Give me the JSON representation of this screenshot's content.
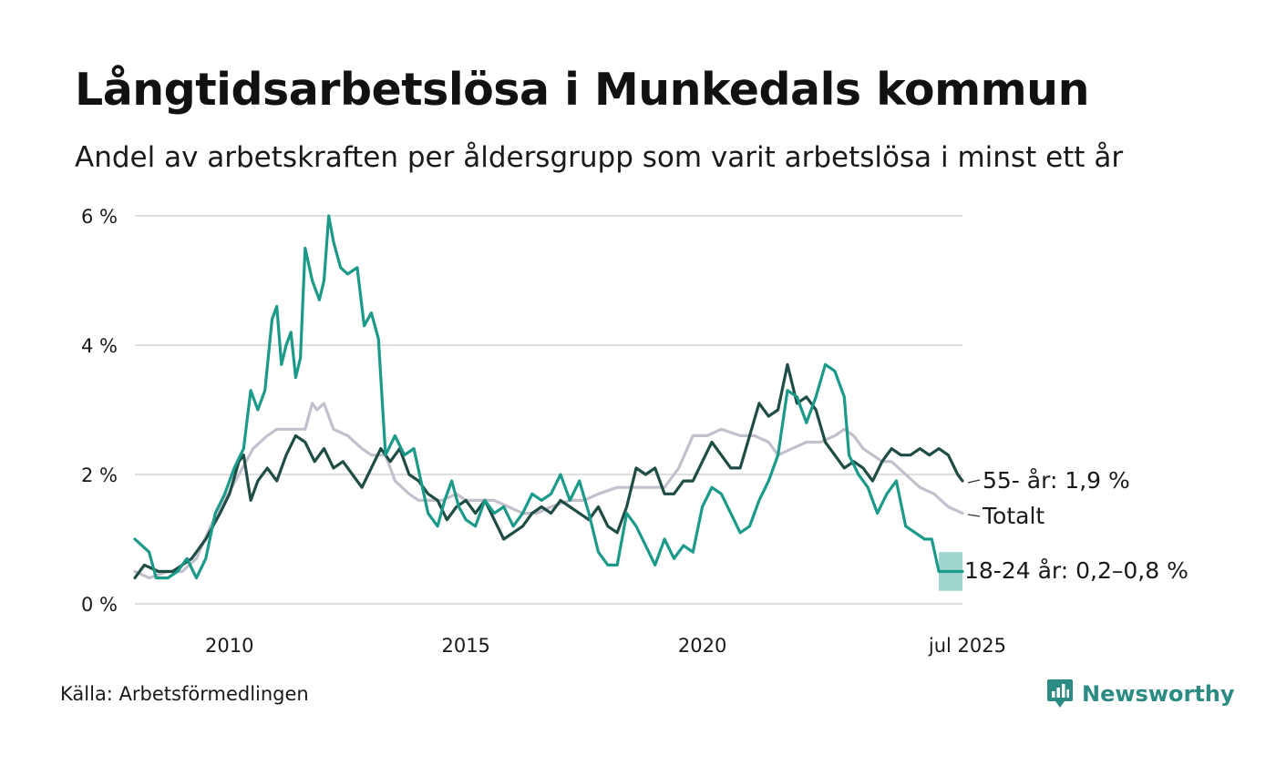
{
  "header": {
    "title": "Långtidsarbetslösa i Munkedals kommun",
    "subtitle": "Andel av arbetskraften per åldersgrupp som varit arbetslösa i minst ett år"
  },
  "footer": {
    "source": "Källa: Arbetsförmedlingen",
    "brand_name": "Newsworthy",
    "brand_color": "#2c8c84"
  },
  "chart_data": {
    "type": "line",
    "title": "Långtidsarbetslösa i Munkedals kommun",
    "subtitle": "Andel av arbetskraften per åldersgrupp som varit arbetslösa i minst ett år",
    "xlabel": "",
    "ylabel": "",
    "xlim": [
      2008.0,
      2025.5
    ],
    "ylim": [
      0,
      6
    ],
    "grid": "horizontal",
    "legend": "inline-right",
    "y_ticks": [
      {
        "value": 0,
        "label": "0 %"
      },
      {
        "value": 2,
        "label": "2 %"
      },
      {
        "value": 4,
        "label": "4 %"
      },
      {
        "value": 6,
        "label": "6 %"
      }
    ],
    "x_ticks": [
      {
        "value": 2010,
        "label": "2010"
      },
      {
        "value": 2015,
        "label": "2015"
      },
      {
        "value": 2020,
        "label": "2020"
      },
      {
        "value": 2025.5,
        "label": "jul 2025"
      }
    ],
    "series": [
      {
        "key": "totalt",
        "name": "Totalt",
        "label": "Totalt",
        "color": "#c2c0cd",
        "points": [
          [
            2008.0,
            0.5
          ],
          [
            2008.3,
            0.4
          ],
          [
            2008.7,
            0.5
          ],
          [
            2009.0,
            0.5
          ],
          [
            2009.3,
            0.7
          ],
          [
            2009.6,
            1.2
          ],
          [
            2009.9,
            1.6
          ],
          [
            2010.2,
            2.0
          ],
          [
            2010.5,
            2.4
          ],
          [
            2010.8,
            2.6
          ],
          [
            2011.0,
            2.7
          ],
          [
            2011.3,
            2.7
          ],
          [
            2011.6,
            2.7
          ],
          [
            2011.75,
            3.1
          ],
          [
            2011.85,
            3.0
          ],
          [
            2012.0,
            3.1
          ],
          [
            2012.2,
            2.7
          ],
          [
            2012.5,
            2.6
          ],
          [
            2012.8,
            2.4
          ],
          [
            2013.0,
            2.3
          ],
          [
            2013.3,
            2.3
          ],
          [
            2013.5,
            1.9
          ],
          [
            2013.8,
            1.7
          ],
          [
            2014.0,
            1.6
          ],
          [
            2014.5,
            1.6
          ],
          [
            2014.8,
            1.7
          ],
          [
            2015.0,
            1.6
          ],
          [
            2015.3,
            1.6
          ],
          [
            2015.6,
            1.6
          ],
          [
            2015.9,
            1.5
          ],
          [
            2016.2,
            1.4
          ],
          [
            2016.5,
            1.4
          ],
          [
            2016.8,
            1.5
          ],
          [
            2017.2,
            1.6
          ],
          [
            2017.5,
            1.6
          ],
          [
            2017.8,
            1.7
          ],
          [
            2018.2,
            1.8
          ],
          [
            2018.5,
            1.8
          ],
          [
            2018.8,
            1.8
          ],
          [
            2019.2,
            1.8
          ],
          [
            2019.5,
            2.1
          ],
          [
            2019.8,
            2.6
          ],
          [
            2020.1,
            2.6
          ],
          [
            2020.4,
            2.7
          ],
          [
            2020.8,
            2.6
          ],
          [
            2021.1,
            2.6
          ],
          [
            2021.4,
            2.5
          ],
          [
            2021.6,
            2.3
          ],
          [
            2021.9,
            2.4
          ],
          [
            2022.2,
            2.5
          ],
          [
            2022.5,
            2.5
          ],
          [
            2022.8,
            2.6
          ],
          [
            2023.0,
            2.7
          ],
          [
            2023.2,
            2.6
          ],
          [
            2023.4,
            2.4
          ],
          [
            2023.6,
            2.3
          ],
          [
            2023.8,
            2.2
          ],
          [
            2024.0,
            2.2
          ],
          [
            2024.3,
            2.0
          ],
          [
            2024.6,
            1.8
          ],
          [
            2024.9,
            1.7
          ],
          [
            2025.2,
            1.5
          ],
          [
            2025.5,
            1.4
          ]
        ]
      },
      {
        "key": "age55",
        "name": "55- år",
        "label": "55- år: 1,9 %",
        "color": "#1f4d45",
        "points": [
          [
            2008.0,
            0.4
          ],
          [
            2008.2,
            0.6
          ],
          [
            2008.5,
            0.5
          ],
          [
            2008.8,
            0.5
          ],
          [
            2009.0,
            0.6
          ],
          [
            2009.2,
            0.7
          ],
          [
            2009.5,
            1.0
          ],
          [
            2009.8,
            1.4
          ],
          [
            2010.0,
            1.7
          ],
          [
            2010.2,
            2.2
          ],
          [
            2010.3,
            2.3
          ],
          [
            2010.45,
            1.6
          ],
          [
            2010.6,
            1.9
          ],
          [
            2010.8,
            2.1
          ],
          [
            2011.0,
            1.9
          ],
          [
            2011.2,
            2.3
          ],
          [
            2011.4,
            2.6
          ],
          [
            2011.6,
            2.5
          ],
          [
            2011.8,
            2.2
          ],
          [
            2012.0,
            2.4
          ],
          [
            2012.2,
            2.1
          ],
          [
            2012.4,
            2.2
          ],
          [
            2012.6,
            2.0
          ],
          [
            2012.8,
            1.8
          ],
          [
            2013.0,
            2.1
          ],
          [
            2013.2,
            2.4
          ],
          [
            2013.4,
            2.2
          ],
          [
            2013.6,
            2.4
          ],
          [
            2013.8,
            2.0
          ],
          [
            2014.0,
            1.9
          ],
          [
            2014.2,
            1.7
          ],
          [
            2014.4,
            1.6
          ],
          [
            2014.6,
            1.3
          ],
          [
            2014.8,
            1.5
          ],
          [
            2015.0,
            1.6
          ],
          [
            2015.2,
            1.4
          ],
          [
            2015.4,
            1.6
          ],
          [
            2015.6,
            1.3
          ],
          [
            2015.8,
            1.0
          ],
          [
            2016.0,
            1.1
          ],
          [
            2016.2,
            1.2
          ],
          [
            2016.4,
            1.4
          ],
          [
            2016.6,
            1.5
          ],
          [
            2016.8,
            1.4
          ],
          [
            2017.0,
            1.6
          ],
          [
            2017.2,
            1.5
          ],
          [
            2017.4,
            1.4
          ],
          [
            2017.6,
            1.3
          ],
          [
            2017.8,
            1.5
          ],
          [
            2018.0,
            1.2
          ],
          [
            2018.2,
            1.1
          ],
          [
            2018.4,
            1.5
          ],
          [
            2018.6,
            2.1
          ],
          [
            2018.8,
            2.0
          ],
          [
            2019.0,
            2.1
          ],
          [
            2019.2,
            1.7
          ],
          [
            2019.4,
            1.7
          ],
          [
            2019.6,
            1.9
          ],
          [
            2019.8,
            1.9
          ],
          [
            2020.0,
            2.2
          ],
          [
            2020.2,
            2.5
          ],
          [
            2020.4,
            2.3
          ],
          [
            2020.6,
            2.1
          ],
          [
            2020.8,
            2.1
          ],
          [
            2021.0,
            2.6
          ],
          [
            2021.2,
            3.1
          ],
          [
            2021.4,
            2.9
          ],
          [
            2021.6,
            3.0
          ],
          [
            2021.8,
            3.7
          ],
          [
            2022.0,
            3.1
          ],
          [
            2022.2,
            3.2
          ],
          [
            2022.4,
            3.0
          ],
          [
            2022.6,
            2.5
          ],
          [
            2022.8,
            2.3
          ],
          [
            2023.0,
            2.1
          ],
          [
            2023.2,
            2.2
          ],
          [
            2023.4,
            2.1
          ],
          [
            2023.6,
            1.9
          ],
          [
            2023.8,
            2.2
          ],
          [
            2024.0,
            2.4
          ],
          [
            2024.2,
            2.3
          ],
          [
            2024.4,
            2.3
          ],
          [
            2024.6,
            2.4
          ],
          [
            2024.8,
            2.3
          ],
          [
            2025.0,
            2.4
          ],
          [
            2025.2,
            2.3
          ],
          [
            2025.4,
            2.0
          ],
          [
            2025.5,
            1.9
          ]
        ]
      },
      {
        "key": "age1824",
        "name": "18-24 år",
        "label": "18-24 år: 0,2–0,8 %",
        "color": "#1b9a8a",
        "band_color": "#8fcfc4",
        "points": [
          [
            2008.0,
            1.0
          ],
          [
            2008.15,
            0.9
          ],
          [
            2008.3,
            0.8
          ],
          [
            2008.45,
            0.4
          ],
          [
            2008.7,
            0.4
          ],
          [
            2008.9,
            0.5
          ],
          [
            2009.1,
            0.7
          ],
          [
            2009.3,
            0.4
          ],
          [
            2009.5,
            0.7
          ],
          [
            2009.7,
            1.4
          ],
          [
            2009.9,
            1.7
          ],
          [
            2010.1,
            2.1
          ],
          [
            2010.3,
            2.4
          ],
          [
            2010.45,
            3.3
          ],
          [
            2010.6,
            3.0
          ],
          [
            2010.75,
            3.3
          ],
          [
            2010.9,
            4.4
          ],
          [
            2011.0,
            4.6
          ],
          [
            2011.1,
            3.7
          ],
          [
            2011.2,
            4.0
          ],
          [
            2011.3,
            4.2
          ],
          [
            2011.4,
            3.5
          ],
          [
            2011.5,
            3.8
          ],
          [
            2011.6,
            5.5
          ],
          [
            2011.75,
            5.0
          ],
          [
            2011.9,
            4.7
          ],
          [
            2012.0,
            5.0
          ],
          [
            2012.1,
            6.0
          ],
          [
            2012.2,
            5.6
          ],
          [
            2012.35,
            5.2
          ],
          [
            2012.5,
            5.1
          ],
          [
            2012.7,
            5.2
          ],
          [
            2012.85,
            4.3
          ],
          [
            2013.0,
            4.5
          ],
          [
            2013.15,
            4.1
          ],
          [
            2013.3,
            2.3
          ],
          [
            2013.5,
            2.6
          ],
          [
            2013.7,
            2.3
          ],
          [
            2013.9,
            2.4
          ],
          [
            2014.05,
            1.9
          ],
          [
            2014.2,
            1.4
          ],
          [
            2014.4,
            1.2
          ],
          [
            2014.55,
            1.6
          ],
          [
            2014.7,
            1.9
          ],
          [
            2014.85,
            1.5
          ],
          [
            2015.0,
            1.3
          ],
          [
            2015.2,
            1.2
          ],
          [
            2015.4,
            1.6
          ],
          [
            2015.6,
            1.4
          ],
          [
            2015.8,
            1.5
          ],
          [
            2016.0,
            1.2
          ],
          [
            2016.2,
            1.4
          ],
          [
            2016.4,
            1.7
          ],
          [
            2016.6,
            1.6
          ],
          [
            2016.8,
            1.7
          ],
          [
            2017.0,
            2.0
          ],
          [
            2017.2,
            1.6
          ],
          [
            2017.4,
            1.9
          ],
          [
            2017.6,
            1.4
          ],
          [
            2017.8,
            0.8
          ],
          [
            2018.0,
            0.6
          ],
          [
            2018.2,
            0.6
          ],
          [
            2018.4,
            1.4
          ],
          [
            2018.6,
            1.2
          ],
          [
            2018.8,
            0.9
          ],
          [
            2019.0,
            0.6
          ],
          [
            2019.2,
            1.0
          ],
          [
            2019.4,
            0.7
          ],
          [
            2019.6,
            0.9
          ],
          [
            2019.8,
            0.8
          ],
          [
            2020.0,
            1.5
          ],
          [
            2020.2,
            1.8
          ],
          [
            2020.4,
            1.7
          ],
          [
            2020.6,
            1.4
          ],
          [
            2020.8,
            1.1
          ],
          [
            2021.0,
            1.2
          ],
          [
            2021.2,
            1.6
          ],
          [
            2021.4,
            1.9
          ],
          [
            2021.6,
            2.3
          ],
          [
            2021.8,
            3.3
          ],
          [
            2022.0,
            3.2
          ],
          [
            2022.2,
            2.8
          ],
          [
            2022.4,
            3.2
          ],
          [
            2022.6,
            3.7
          ],
          [
            2022.8,
            3.6
          ],
          [
            2023.0,
            3.2
          ],
          [
            2023.1,
            2.3
          ],
          [
            2023.3,
            2.0
          ],
          [
            2023.5,
            1.8
          ],
          [
            2023.7,
            1.4
          ],
          [
            2023.9,
            1.7
          ],
          [
            2024.1,
            1.9
          ],
          [
            2024.3,
            1.2
          ],
          [
            2024.5,
            1.1
          ],
          [
            2024.7,
            1.0
          ],
          [
            2024.85,
            1.0
          ],
          [
            2025.0,
            0.5
          ],
          [
            2025.5,
            0.5
          ]
        ],
        "band": {
          "x_from": 2025.0,
          "x_to": 2025.5,
          "low": 0.2,
          "high": 0.8
        }
      }
    ]
  }
}
